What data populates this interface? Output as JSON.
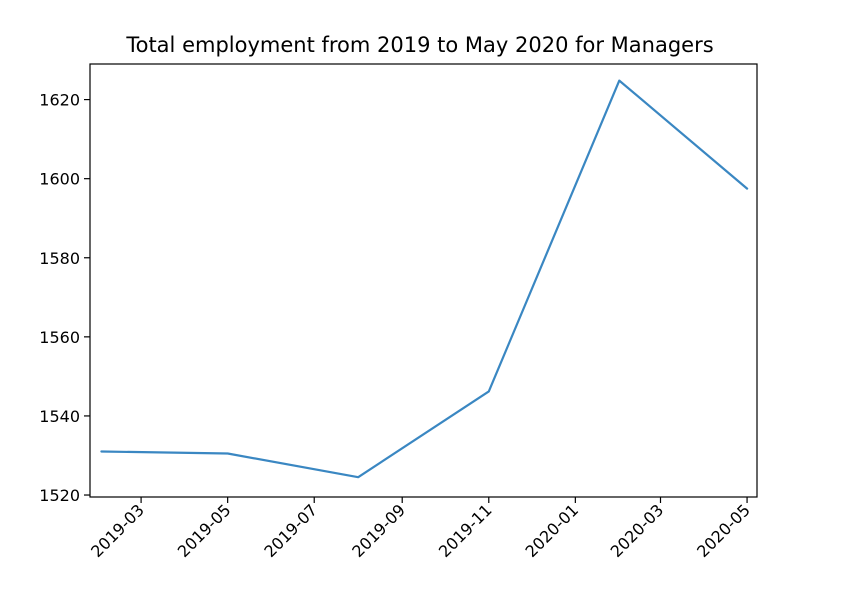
{
  "chart_data": {
    "type": "line",
    "title": "Total employment from 2019 to May 2020 for Managers",
    "xlabel": "",
    "ylabel": "",
    "x_ticks": [
      "2019-03",
      "2019-05",
      "2019-07",
      "2019-09",
      "2019-11",
      "2020-01",
      "2020-03",
      "2020-05"
    ],
    "y_ticks": [
      1520,
      1540,
      1560,
      1580,
      1600,
      1620
    ],
    "xlim": [
      "2019-01-24",
      "2020-05-08"
    ],
    "ylim": [
      1519.5,
      1629
    ],
    "series": [
      {
        "color": "#3a87c2",
        "x": [
          "2019-02-01",
          "2019-05-01",
          "2019-08-01",
          "2019-11-01",
          "2020-02-01",
          "2020-05-01"
        ],
        "values": [
          1531,
          1530.5,
          1524.5,
          1546.2,
          1624.8,
          1597.5
        ]
      }
    ],
    "grid": false,
    "legend": "none"
  }
}
